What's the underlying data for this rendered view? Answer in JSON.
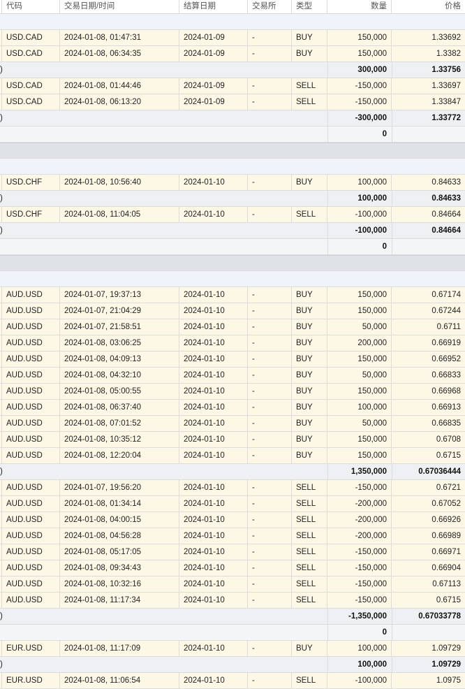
{
  "header": {
    "symbol": "代码",
    "datetime": "交易日期/时间",
    "settle": "结算日期",
    "exchange": "交易所",
    "type": "类型",
    "quantity": "数量",
    "price": "价格"
  },
  "rows": [
    {
      "kind": "group"
    },
    {
      "kind": "trade",
      "symbol": "USD.CAD",
      "datetime": "2024-01-08, 01:47:31",
      "settle": "2024-01-09",
      "exchange": "-",
      "type": "BUY",
      "qty": "150,000",
      "price": "1.33692"
    },
    {
      "kind": "trade",
      "symbol": "USD.CAD",
      "datetime": "2024-01-08, 06:34:35",
      "settle": "2024-01-09",
      "exchange": "-",
      "type": "BUY",
      "qty": "150,000",
      "price": "1.3382"
    },
    {
      "kind": "summary",
      "label": ")",
      "qty": "300,000",
      "price": "1.33756"
    },
    {
      "kind": "trade",
      "symbol": "USD.CAD",
      "datetime": "2024-01-08, 01:44:46",
      "settle": "2024-01-09",
      "exchange": "-",
      "type": "SELL",
      "qty": "-150,000",
      "price": "1.33697"
    },
    {
      "kind": "trade",
      "symbol": "USD.CAD",
      "datetime": "2024-01-08, 06:13:20",
      "settle": "2024-01-09",
      "exchange": "-",
      "type": "SELL",
      "qty": "-150,000",
      "price": "1.33847"
    },
    {
      "kind": "summary",
      "label": ")",
      "qty": "-300,000",
      "price": "1.33772"
    },
    {
      "kind": "net",
      "qty": "0"
    },
    {
      "kind": "sep"
    },
    {
      "kind": "group"
    },
    {
      "kind": "trade",
      "symbol": "USD.CHF",
      "datetime": "2024-01-08, 10:56:40",
      "settle": "2024-01-10",
      "exchange": "-",
      "type": "BUY",
      "qty": "100,000",
      "price": "0.84633"
    },
    {
      "kind": "summary",
      "label": ")",
      "qty": "100,000",
      "price": "0.84633"
    },
    {
      "kind": "trade",
      "symbol": "USD.CHF",
      "datetime": "2024-01-08, 11:04:05",
      "settle": "2024-01-10",
      "exchange": "-",
      "type": "SELL",
      "qty": "-100,000",
      "price": "0.84664"
    },
    {
      "kind": "summary",
      "label": ")",
      "qty": "-100,000",
      "price": "0.84664"
    },
    {
      "kind": "net",
      "qty": "0"
    },
    {
      "kind": "sep"
    },
    {
      "kind": "group"
    },
    {
      "kind": "trade",
      "symbol": "AUD.USD",
      "datetime": "2024-01-07, 19:37:13",
      "settle": "2024-01-10",
      "exchange": "-",
      "type": "BUY",
      "qty": "150,000",
      "price": "0.67174"
    },
    {
      "kind": "trade",
      "symbol": "AUD.USD",
      "datetime": "2024-01-07, 21:04:29",
      "settle": "2024-01-10",
      "exchange": "-",
      "type": "BUY",
      "qty": "150,000",
      "price": "0.67244"
    },
    {
      "kind": "trade",
      "symbol": "AUD.USD",
      "datetime": "2024-01-07, 21:58:51",
      "settle": "2024-01-10",
      "exchange": "-",
      "type": "BUY",
      "qty": "50,000",
      "price": "0.6711"
    },
    {
      "kind": "trade",
      "symbol": "AUD.USD",
      "datetime": "2024-01-08, 03:06:25",
      "settle": "2024-01-10",
      "exchange": "-",
      "type": "BUY",
      "qty": "200,000",
      "price": "0.66919"
    },
    {
      "kind": "trade",
      "symbol": "AUD.USD",
      "datetime": "2024-01-08, 04:09:13",
      "settle": "2024-01-10",
      "exchange": "-",
      "type": "BUY",
      "qty": "150,000",
      "price": "0.66952"
    },
    {
      "kind": "trade",
      "symbol": "AUD.USD",
      "datetime": "2024-01-08, 04:32:10",
      "settle": "2024-01-10",
      "exchange": "-",
      "type": "BUY",
      "qty": "50,000",
      "price": "0.66833"
    },
    {
      "kind": "trade",
      "symbol": "AUD.USD",
      "datetime": "2024-01-08, 05:00:55",
      "settle": "2024-01-10",
      "exchange": "-",
      "type": "BUY",
      "qty": "150,000",
      "price": "0.66968"
    },
    {
      "kind": "trade",
      "symbol": "AUD.USD",
      "datetime": "2024-01-08, 06:37:40",
      "settle": "2024-01-10",
      "exchange": "-",
      "type": "BUY",
      "qty": "100,000",
      "price": "0.66913"
    },
    {
      "kind": "trade",
      "symbol": "AUD.USD",
      "datetime": "2024-01-08, 07:01:52",
      "settle": "2024-01-10",
      "exchange": "-",
      "type": "BUY",
      "qty": "50,000",
      "price": "0.66835"
    },
    {
      "kind": "trade",
      "symbol": "AUD.USD",
      "datetime": "2024-01-08, 10:35:12",
      "settle": "2024-01-10",
      "exchange": "-",
      "type": "BUY",
      "qty": "150,000",
      "price": "0.6708"
    },
    {
      "kind": "trade",
      "symbol": "AUD.USD",
      "datetime": "2024-01-08, 12:20:04",
      "settle": "2024-01-10",
      "exchange": "-",
      "type": "BUY",
      "qty": "150,000",
      "price": "0.6715"
    },
    {
      "kind": "summary",
      "label": ")",
      "qty": "1,350,000",
      "price": "0.67036444"
    },
    {
      "kind": "trade",
      "symbol": "AUD.USD",
      "datetime": "2024-01-07, 19:56:20",
      "settle": "2024-01-10",
      "exchange": "-",
      "type": "SELL",
      "qty": "-150,000",
      "price": "0.6721"
    },
    {
      "kind": "trade",
      "symbol": "AUD.USD",
      "datetime": "2024-01-08, 01:34:14",
      "settle": "2024-01-10",
      "exchange": "-",
      "type": "SELL",
      "qty": "-200,000",
      "price": "0.67052"
    },
    {
      "kind": "trade",
      "symbol": "AUD.USD",
      "datetime": "2024-01-08, 04:00:15",
      "settle": "2024-01-10",
      "exchange": "-",
      "type": "SELL",
      "qty": "-200,000",
      "price": "0.66926"
    },
    {
      "kind": "trade",
      "symbol": "AUD.USD",
      "datetime": "2024-01-08, 04:56:28",
      "settle": "2024-01-10",
      "exchange": "-",
      "type": "SELL",
      "qty": "-200,000",
      "price": "0.66989"
    },
    {
      "kind": "trade",
      "symbol": "AUD.USD",
      "datetime": "2024-01-08, 05:17:05",
      "settle": "2024-01-10",
      "exchange": "-",
      "type": "SELL",
      "qty": "-150,000",
      "price": "0.66971"
    },
    {
      "kind": "trade",
      "symbol": "AUD.USD",
      "datetime": "2024-01-08, 09:34:43",
      "settle": "2024-01-10",
      "exchange": "-",
      "type": "SELL",
      "qty": "-150,000",
      "price": "0.66904"
    },
    {
      "kind": "trade",
      "symbol": "AUD.USD",
      "datetime": "2024-01-08, 10:32:16",
      "settle": "2024-01-10",
      "exchange": "-",
      "type": "SELL",
      "qty": "-150,000",
      "price": "0.67113"
    },
    {
      "kind": "trade",
      "symbol": "AUD.USD",
      "datetime": "2024-01-08, 11:17:34",
      "settle": "2024-01-10",
      "exchange": "-",
      "type": "SELL",
      "qty": "-150,000",
      "price": "0.6715"
    },
    {
      "kind": "summary",
      "label": ")",
      "qty": "-1,350,000",
      "price": "0.67033778"
    },
    {
      "kind": "net",
      "qty": "0"
    },
    {
      "kind": "trade",
      "symbol": "EUR.USD",
      "datetime": "2024-01-08, 11:17:09",
      "settle": "2024-01-10",
      "exchange": "-",
      "type": "BUY",
      "qty": "100,000",
      "price": "1.09729"
    },
    {
      "kind": "summary",
      "label": ")",
      "qty": "100,000",
      "price": "1.09729"
    },
    {
      "kind": "trade",
      "symbol": "EUR.USD",
      "datetime": "2024-01-08, 11:06:54",
      "settle": "2024-01-10",
      "exchange": "-",
      "type": "SELL",
      "qty": "-100,000",
      "price": "1.0975"
    }
  ]
}
